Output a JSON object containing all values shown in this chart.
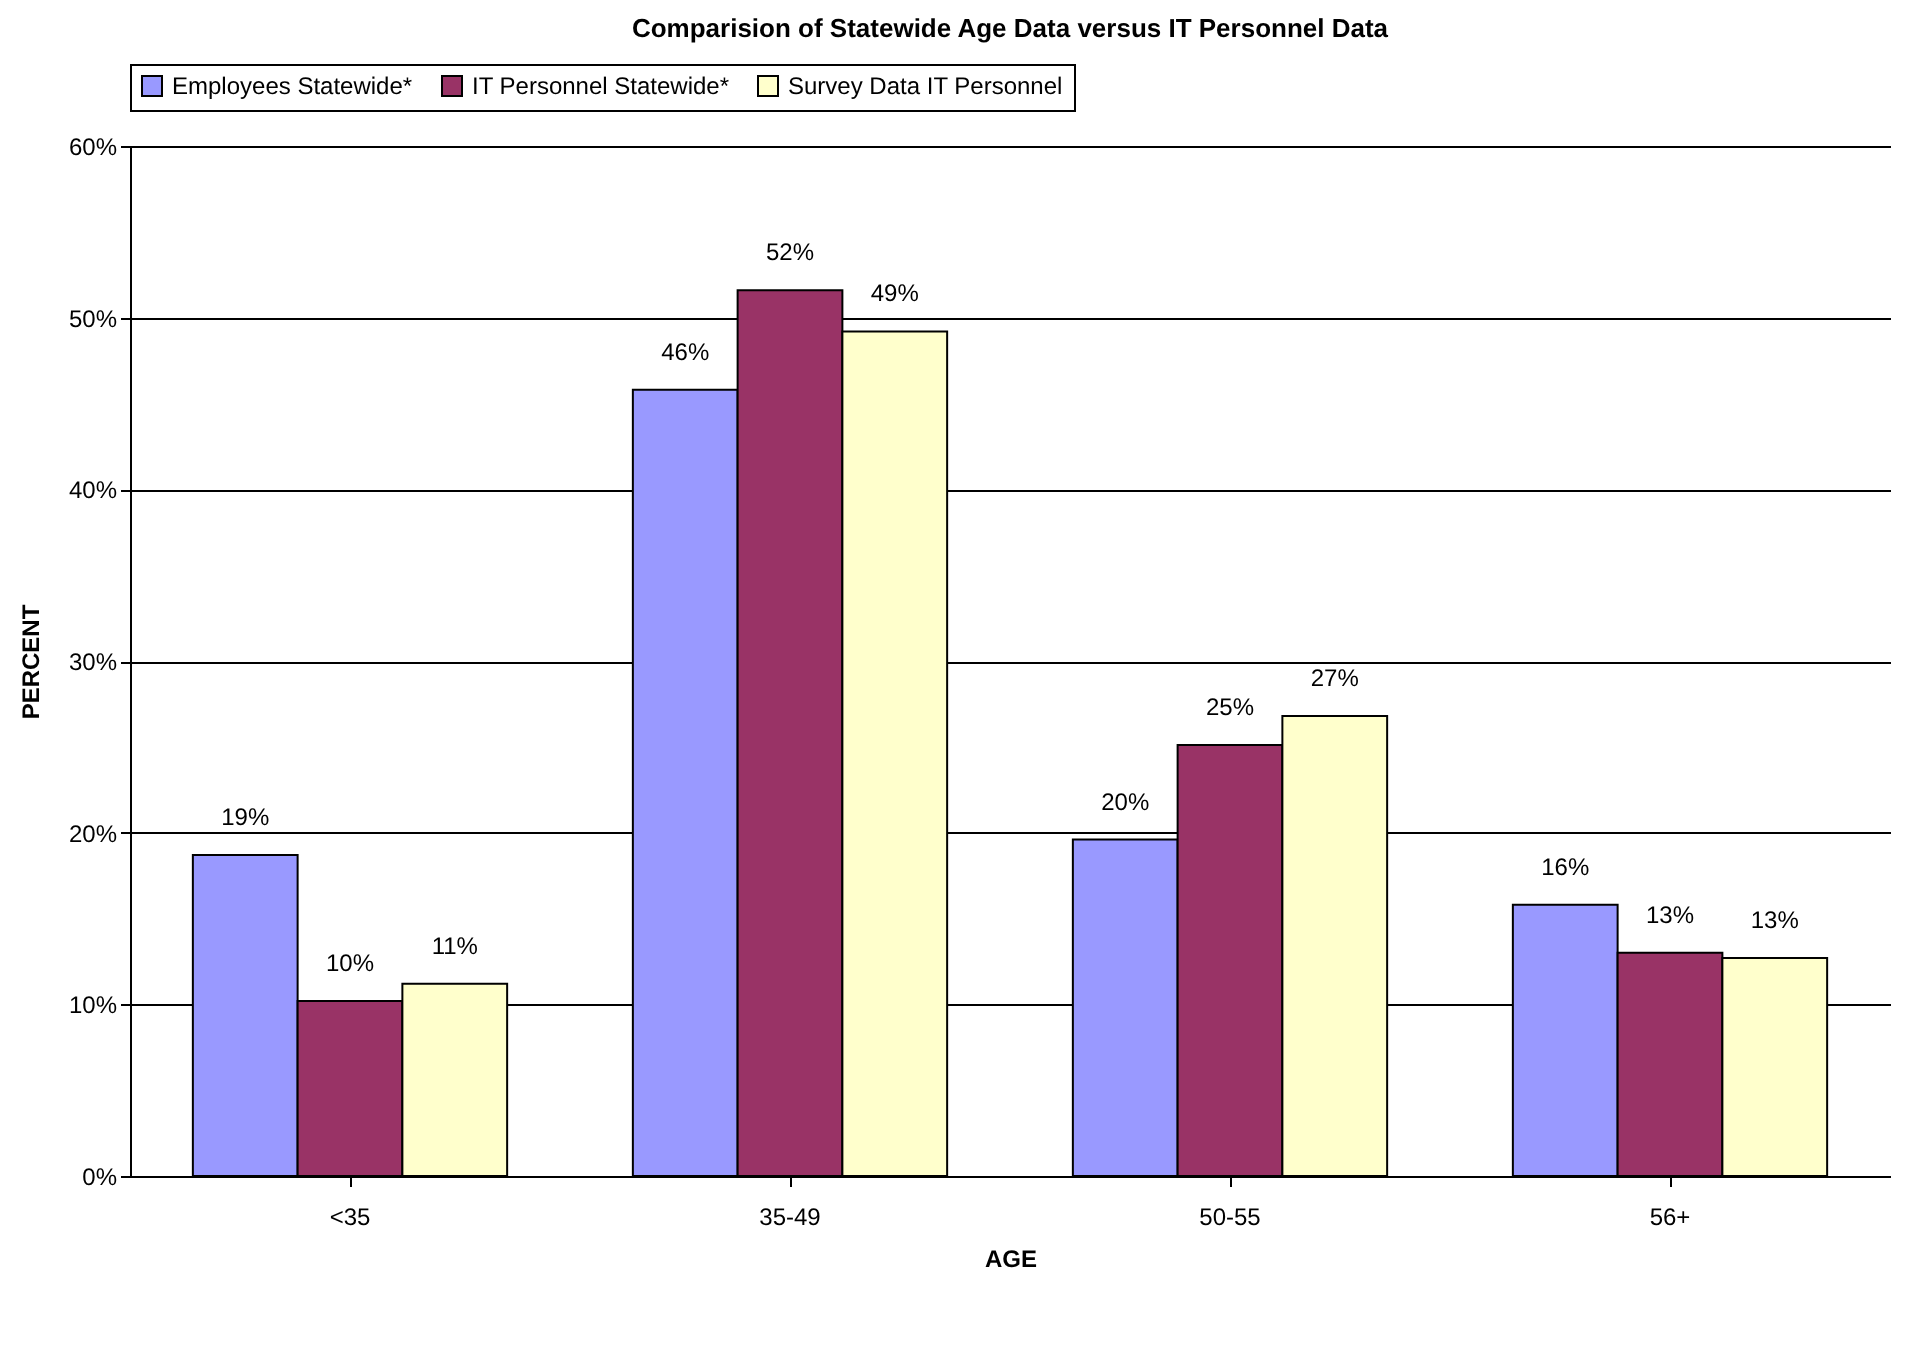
{
  "chart_data": {
    "type": "bar",
    "title": "Comparision of Statewide Age Data versus IT Personnel Data",
    "xlabel": "AGE",
    "ylabel": "PERCENT",
    "categories": [
      "<35",
      "35-49",
      "50-55",
      "56+"
    ],
    "series": [
      {
        "name": "Employees Statewide*",
        "color": "#9999ff",
        "values": [
          18.7,
          45.8,
          19.6,
          15.8
        ],
        "value_labels": [
          "19%",
          "46%",
          "20%",
          "16%"
        ]
      },
      {
        "name": "IT Personnel Statewide*",
        "color": "#993366",
        "values": [
          10.2,
          51.6,
          25.1,
          13.0
        ],
        "value_labels": [
          "10%",
          "52%",
          "25%",
          "13%"
        ]
      },
      {
        "name": "Survey Data IT Personnel",
        "color": "#ffffcc",
        "values": [
          11.2,
          49.2,
          26.8,
          12.7
        ],
        "value_labels": [
          "11%",
          "49%",
          "27%",
          "13%"
        ]
      }
    ],
    "ylim": [
      0,
      60
    ],
    "yticks": [
      {
        "value": 0,
        "label": "0%"
      },
      {
        "value": 10,
        "label": "10%"
      },
      {
        "value": 20,
        "label": "20%"
      },
      {
        "value": 30,
        "label": "30%"
      },
      {
        "value": 40,
        "label": "40%"
      },
      {
        "value": 50,
        "label": "50%"
      },
      {
        "value": 60,
        "label": "60%"
      }
    ],
    "grid": "y",
    "legend": "top"
  }
}
